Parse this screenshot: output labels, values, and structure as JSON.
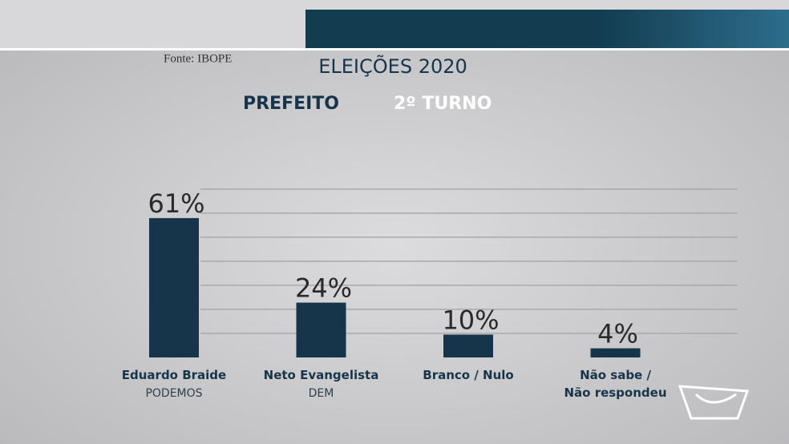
{
  "source": "Fonte: IBOPE",
  "chart_data": {
    "type": "bar",
    "title": "ELEIÇÕES 2020",
    "subtitle": [
      "PREFEITO",
      "2º TURNO"
    ],
    "categories": [
      "Eduardo Braide",
      "Neto Evangelista",
      "Branco / Nulo",
      "Não sabe /\nNão respondeu"
    ],
    "category_notes": [
      "PODEMOS",
      "DEM",
      null,
      null
    ],
    "values": [
      61,
      24,
      10,
      4
    ],
    "value_labels": [
      "61%",
      "24%",
      "10%",
      "4%"
    ],
    "color": "#17354a"
  }
}
